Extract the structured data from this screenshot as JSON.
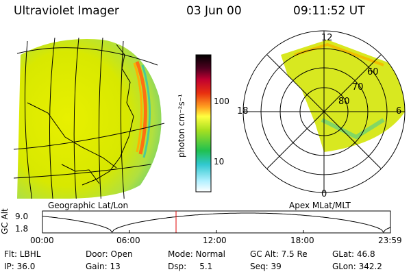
{
  "header": {
    "instrument": "Ultraviolet Imager",
    "date": "03 Jun 00",
    "time": "09:11:52 UT"
  },
  "colorbar": {
    "unit_label": "photon cm⁻²s⁻¹",
    "ticks": [
      "100",
      "10"
    ],
    "scale": "log"
  },
  "panels": {
    "left_caption": "Geographic Lat/Lon",
    "right_caption": "Apex MLat/MLT"
  },
  "polar": {
    "mlt_labels": {
      "top": "12",
      "left": "18",
      "right": "6",
      "bottom": "0"
    },
    "lat_labels": [
      "60",
      "70",
      "80"
    ]
  },
  "altitude_plot": {
    "ylabel": "GC Alt",
    "y_ticks": [
      "9.0",
      "1.8"
    ],
    "x_ticks": [
      "00:00",
      "06:00",
      "12:00",
      "18:00",
      "23:59"
    ],
    "current_marker_color": "#e00000"
  },
  "status": {
    "flt": "Flt: LBHL",
    "door": "Door: Open",
    "mode": "Mode: Normal",
    "gcalt": "GC Alt: 7.5 Re",
    "glat": "GLat:  46.8",
    "ip": "IP: 36.0",
    "gain": "Gain: 13",
    "dsp": "Dsp:     5.1",
    "seq": "Seq: 39",
    "glon": "GLon: 342.2"
  }
}
